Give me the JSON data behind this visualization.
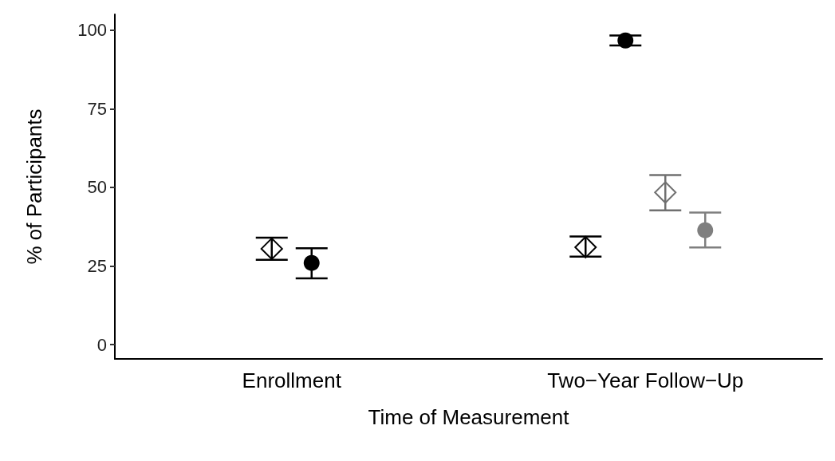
{
  "chart_data": {
    "type": "scatter",
    "xlabel": "Time of Measurement",
    "ylabel": "% of Participants",
    "categories": [
      "Enrollment",
      "Two−Year Follow−Up"
    ],
    "series": [
      {
        "color": "#000000",
        "marker": "diamond",
        "values": [
          30.5,
          31
        ],
        "errors": [
          [
            27,
            34
          ],
          [
            28,
            34.4
          ]
        ]
      },
      {
        "color": "#000000",
        "marker": "circle",
        "values": [
          26,
          96.7
        ],
        "errors": [
          [
            21.1,
            30.7
          ],
          [
            95.1,
            98.3
          ]
        ]
      },
      {
        "color": "#707070",
        "marker": "diamond",
        "values": [
          null,
          48.4
        ],
        "errors": [
          null,
          [
            42.7,
            53.9
          ]
        ]
      },
      {
        "color": "#7f7f7f",
        "marker": "circle",
        "values": [
          null,
          36.4
        ],
        "errors": [
          null,
          [
            30.9,
            42
          ]
        ]
      }
    ],
    "ylim": [
      -4.5,
      105
    ],
    "yticks": [
      0,
      25,
      50,
      75,
      100
    ],
    "grid": false
  }
}
